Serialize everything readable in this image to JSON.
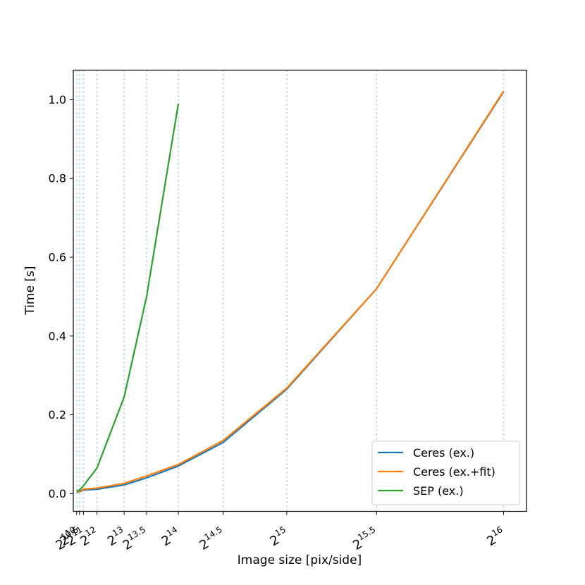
{
  "chart_data": {
    "type": "line",
    "xlabel": "Image size [pix/side]",
    "ylabel": "Time [s]",
    "ylim": [
      -0.045,
      1.075
    ],
    "xlim": [
      512,
      69000
    ],
    "grid": "vertical dotted lines at each x tick",
    "legend_position": "lower-right",
    "x_ticks": [
      {
        "value": 1024,
        "base": "2",
        "exp": "10"
      },
      {
        "value": 1448,
        "base": "2",
        "exp": "10.5"
      },
      {
        "value": 2048,
        "base": "2",
        "exp": "11"
      },
      {
        "value": 4096,
        "base": "2",
        "exp": "12"
      },
      {
        "value": 8192,
        "base": "2",
        "exp": "13"
      },
      {
        "value": 11585,
        "base": "2",
        "exp": "13.5"
      },
      {
        "value": 16384,
        "base": "2",
        "exp": "14"
      },
      {
        "value": 23170,
        "base": "2",
        "exp": "14.5"
      },
      {
        "value": 32768,
        "base": "2",
        "exp": "15"
      },
      {
        "value": 46341,
        "base": "2",
        "exp": "15.5"
      },
      {
        "value": 65536,
        "base": "2",
        "exp": "16"
      }
    ],
    "y_ticks": [
      {
        "value": 0.0,
        "label": "0.0"
      },
      {
        "value": 0.2,
        "label": "0.2"
      },
      {
        "value": 0.4,
        "label": "0.4"
      },
      {
        "value": 0.6,
        "label": "0.6"
      },
      {
        "value": 0.8,
        "label": "0.8"
      },
      {
        "value": 1.0,
        "label": "1.0"
      }
    ],
    "series": [
      {
        "name": "Ceres (ex.)",
        "color": "#1f77b4",
        "x": [
          1024,
          1448,
          2048,
          4096,
          8192,
          11585,
          16384,
          23170,
          32768,
          46341,
          65536
        ],
        "y": [
          0.003,
          0.005,
          0.009,
          0.011,
          0.022,
          0.04,
          0.07,
          0.13,
          0.265,
          0.52,
          1.02
        ]
      },
      {
        "name": "Ceres (ex.+fit)",
        "color": "#ff7f0e",
        "x": [
          1024,
          1448,
          2048,
          4096,
          8192,
          11585,
          16384,
          23170,
          32768,
          46341,
          65536
        ],
        "y": [
          0.004,
          0.006,
          0.011,
          0.014,
          0.026,
          0.045,
          0.074,
          0.135,
          0.268,
          0.52,
          1.022
        ]
      },
      {
        "name": "SEP (ex.)",
        "color": "#2ca02c",
        "x": [
          1024,
          1448,
          2048,
          4096,
          8192,
          11585,
          16384
        ],
        "y": [
          0.006,
          0.009,
          0.02,
          0.065,
          0.245,
          0.5,
          0.99
        ]
      }
    ]
  }
}
